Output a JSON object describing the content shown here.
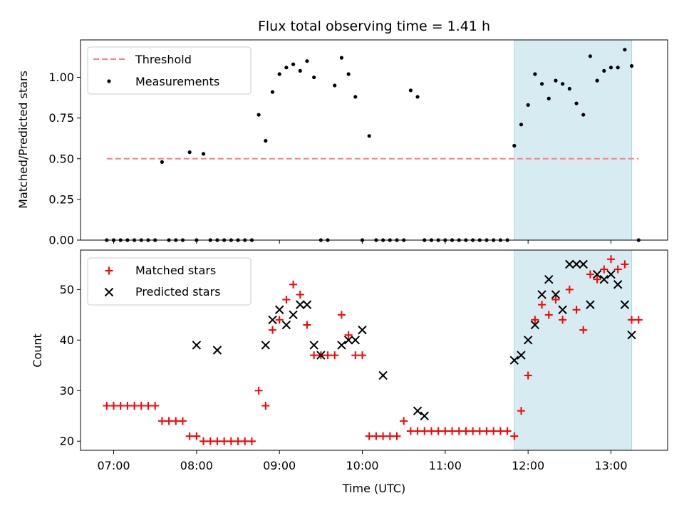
{
  "chart_data": [
    {
      "type": "scatter",
      "title": "Flux total observing time = 1.41 h",
      "xlabel": "",
      "ylabel": "Matched/Predicted stars",
      "xlim": [
        "06:36",
        "13:41"
      ],
      "ylim": [
        0,
        1.23
      ],
      "yticks": [
        "0.00",
        "0.25",
        "0.50",
        "0.75",
        "1.00"
      ],
      "legend_position": "top-left",
      "highlight_span": {
        "start": "11:50",
        "end": "13:15",
        "color": "#add8e6"
      },
      "threshold": {
        "name": "Threshold",
        "value": 0.5,
        "x_start": "06:55",
        "x_end": "13:20",
        "color": "#ff7f7f"
      },
      "series": [
        {
          "name": "Measurements",
          "color": "#000000",
          "marker": "dot",
          "x": [
            "06:55",
            "07:00",
            "07:05",
            "07:10",
            "07:15",
            "07:20",
            "07:25",
            "07:30",
            "07:35",
            "07:40",
            "07:45",
            "07:50",
            "07:55",
            "08:00",
            "08:05",
            "08:10",
            "08:15",
            "08:20",
            "08:25",
            "08:30",
            "08:35",
            "08:40",
            "08:45",
            "08:50",
            "08:55",
            "09:00",
            "09:05",
            "09:10",
            "09:15",
            "09:20",
            "09:25",
            "09:30",
            "09:35",
            "09:40",
            "09:45",
            "09:50",
            "09:55",
            "10:00",
            "10:05",
            "10:10",
            "10:15",
            "10:20",
            "10:25",
            "10:30",
            "10:35",
            "10:40",
            "10:45",
            "10:50",
            "10:55",
            "11:00",
            "11:05",
            "11:10",
            "11:15",
            "11:20",
            "11:25",
            "11:30",
            "11:35",
            "11:40",
            "11:45",
            "11:50",
            "11:55",
            "12:00",
            "12:05",
            "12:10",
            "12:15",
            "12:20",
            "12:25",
            "12:30",
            "12:35",
            "12:40",
            "12:45",
            "12:50",
            "12:55",
            "13:00",
            "13:05",
            "13:10",
            "13:15",
            "13:20"
          ],
          "y": [
            0,
            0,
            0,
            0,
            0,
            0,
            0,
            0,
            0.48,
            0,
            0,
            0,
            0.54,
            0,
            0.53,
            0,
            0,
            0,
            0,
            0,
            0,
            0,
            0.77,
            0.61,
            0.91,
            1.02,
            1.06,
            1.08,
            1.04,
            1.1,
            1.0,
            0,
            0,
            0.95,
            1.12,
            1.02,
            0.88,
            0,
            0.64,
            0,
            0,
            0,
            0,
            0,
            0.92,
            0.88,
            0,
            0,
            0,
            0,
            0,
            0,
            0,
            0,
            0,
            0,
            0,
            0,
            0,
            0.58,
            0.71,
            0.83,
            1.02,
            0.96,
            0.87,
            0.98,
            0.96,
            0.93,
            0.84,
            0.77,
            1.13,
            0.98,
            1.04,
            1.06,
            1.06,
            1.17,
            1.07,
            0
          ]
        }
      ]
    },
    {
      "type": "scatter",
      "title": "",
      "xlabel": "Time (UTC)",
      "ylabel": "Count",
      "xlim": [
        "06:36",
        "13:41"
      ],
      "ylim": [
        18.2,
        57.8
      ],
      "yticks": [
        "20",
        "30",
        "40",
        "50"
      ],
      "xticks": [
        "07:00",
        "08:00",
        "09:00",
        "10:00",
        "11:00",
        "12:00",
        "13:00"
      ],
      "legend_position": "top-left",
      "highlight_span": {
        "start": "11:50",
        "end": "13:15",
        "color": "#add8e6"
      },
      "series": [
        {
          "name": "Matched stars",
          "color": "#ff0000",
          "marker": "plus",
          "x": [
            "06:55",
            "07:00",
            "07:05",
            "07:10",
            "07:15",
            "07:20",
            "07:25",
            "07:30",
            "07:35",
            "07:40",
            "07:45",
            "07:50",
            "07:55",
            "08:00",
            "08:05",
            "08:10",
            "08:15",
            "08:20",
            "08:25",
            "08:30",
            "08:35",
            "08:40",
            "08:45",
            "08:50",
            "08:55",
            "09:00",
            "09:05",
            "09:10",
            "09:15",
            "09:20",
            "09:25",
            "09:30",
            "09:35",
            "09:40",
            "09:45",
            "09:50",
            "09:55",
            "10:00",
            "10:05",
            "10:10",
            "10:15",
            "10:20",
            "10:25",
            "10:30",
            "10:35",
            "10:40",
            "10:45",
            "10:50",
            "10:55",
            "11:00",
            "11:05",
            "11:10",
            "11:15",
            "11:20",
            "11:25",
            "11:30",
            "11:35",
            "11:40",
            "11:45",
            "11:50",
            "11:55",
            "12:00",
            "12:05",
            "12:10",
            "12:15",
            "12:20",
            "12:25",
            "12:30",
            "12:35",
            "12:40",
            "12:45",
            "12:50",
            "12:55",
            "13:00",
            "13:05",
            "13:10",
            "13:15",
            "13:20"
          ],
          "y": [
            27,
            27,
            27,
            27,
            27,
            27,
            27,
            27,
            24,
            24,
            24,
            24,
            21,
            21,
            20,
            20,
            20,
            20,
            20,
            20,
            20,
            20,
            30,
            27,
            42,
            44,
            48,
            51,
            49,
            43,
            37,
            37,
            37,
            37,
            45,
            41,
            37,
            37,
            21,
            21,
            21,
            21,
            21,
            24,
            22,
            22,
            22,
            22,
            22,
            22,
            22,
            22,
            22,
            22,
            22,
            22,
            22,
            22,
            22,
            21,
            26,
            33,
            44,
            47,
            45,
            48,
            44,
            50,
            46,
            42,
            53,
            52,
            54,
            56,
            54,
            55,
            44,
            44
          ]
        },
        {
          "name": "Predicted stars",
          "color": "#000000",
          "marker": "x",
          "x": [
            "08:00",
            "08:15",
            "08:50",
            "08:55",
            "09:00",
            "09:05",
            "09:10",
            "09:15",
            "09:20",
            "09:25",
            "09:30",
            "09:45",
            "09:50",
            "09:55",
            "10:00",
            "10:15",
            "10:40",
            "10:45",
            "11:50",
            "11:55",
            "12:00",
            "12:05",
            "12:10",
            "12:15",
            "12:20",
            "12:25",
            "12:30",
            "12:35",
            "12:40",
            "12:45",
            "12:50",
            "12:55",
            "13:00",
            "13:05",
            "13:10",
            "13:15"
          ],
          "y": [
            39,
            38,
            39,
            44,
            46,
            43,
            45,
            47,
            47,
            39,
            37,
            39,
            40,
            40,
            42,
            33,
            26,
            25,
            36,
            37,
            40,
            43,
            49,
            52,
            49,
            46,
            55,
            55,
            55,
            47,
            53,
            52,
            53,
            51,
            47,
            41
          ]
        }
      ]
    }
  ]
}
